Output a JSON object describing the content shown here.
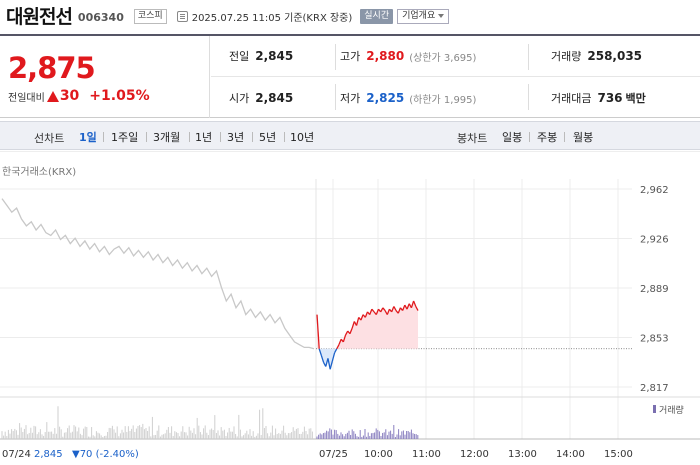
{
  "header": {
    "name": "대원전선",
    "code": "006340",
    "market": "코스피",
    "time": "2025.07.25 11:05 기준(KRX 장중)",
    "realtime": "실시간",
    "company": "기업개요"
  },
  "quote": {
    "price": "2,875",
    "diff_label": "전일대비",
    "diff": "30",
    "rate": "+1.05%",
    "prev_label": "전일",
    "prev": "2,845",
    "high_label": "고가",
    "high": "2,880",
    "upper": "(상한가 3,695)",
    "volume_label": "거래량",
    "volume": "258,035",
    "open_label": "시가",
    "open": "2,845",
    "low_label": "저가",
    "low": "2,825",
    "lower": "(하한가 1,995)",
    "amount_label": "거래대금",
    "amount": "736",
    "amount_unit": "백만"
  },
  "tabs": {
    "line_title": "선차트",
    "line": [
      "1일",
      "1주일",
      "3개월",
      "1년",
      "3년",
      "5년",
      "10년"
    ],
    "candle_title": "봉차트",
    "candle": [
      "일봉",
      "주봉",
      "월봉"
    ]
  },
  "colors": {
    "up": "#e0191d",
    "down": "#1b61c9",
    "prev_day_line": "#c8c8c8"
  },
  "chart_data": {
    "type": "line",
    "source": "한국거래소(KRX)",
    "y_ticks": [
      "2,962",
      "2,926",
      "2,889",
      "2,853",
      "2,817"
    ],
    "ylim": [
      2817,
      2962
    ],
    "x_ticks": [
      "07/25",
      "10:00",
      "11:00",
      "12:00",
      "13:00",
      "14:00",
      "15:00"
    ],
    "base_price": 2845,
    "volume_legend": "거래량",
    "prev_day": {
      "date": "07/24",
      "close_text": "2,845",
      "change_text": "▼70 (-2.40%)",
      "values": [
        2955,
        2950,
        2945,
        2948,
        2940,
        2935,
        2938,
        2932,
        2936,
        2930,
        2928,
        2932,
        2925,
        2928,
        2922,
        2926,
        2920,
        2924,
        2918,
        2922,
        2916,
        2920,
        2914,
        2918,
        2920,
        2915,
        2919,
        2913,
        2917,
        2912,
        2916,
        2910,
        2914,
        2908,
        2912,
        2906,
        2910,
        2904,
        2908,
        2902,
        2906,
        2900,
        2904,
        2898,
        2902,
        2890,
        2880,
        2885,
        2875,
        2880,
        2870,
        2874,
        2868,
        2872,
        2866,
        2870,
        2864,
        2868,
        2860,
        2855,
        2850,
        2848,
        2846,
        2846,
        2845
      ]
    },
    "today": {
      "values": [
        2870,
        2845,
        2840,
        2835,
        2832,
        2838,
        2830,
        2836,
        2842,
        2845,
        2848,
        2852,
        2850,
        2855,
        2858,
        2856,
        2860,
        2865,
        2862,
        2868,
        2866,
        2870,
        2868,
        2872,
        2870,
        2874,
        2872,
        2870,
        2874,
        2872,
        2875,
        2873,
        2870,
        2874,
        2872,
        2876,
        2873,
        2871,
        2875,
        2873,
        2877,
        2874,
        2878,
        2875,
        2880,
        2876,
        2873
      ]
    }
  }
}
